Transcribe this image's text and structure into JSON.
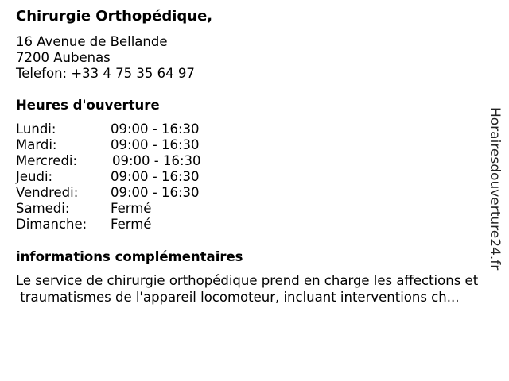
{
  "business": {
    "name": "Chirurgie Orthopédique,",
    "address_line1": "16 Avenue de Bellande",
    "address_line2": "7200 Aubenas",
    "phone": "Telefon: +33 4 75 35 64 97"
  },
  "hours": {
    "heading": "Heures d'ouverture",
    "days": [
      {
        "day": "Lundi:",
        "time": "09:00 - 16:30"
      },
      {
        "day": "Mardi:",
        "time": "09:00 - 16:30"
      },
      {
        "day": "Mercredi:",
        "time": "09:00 - 16:30"
      },
      {
        "day": "Jeudi:",
        "time": "09:00 - 16:30"
      },
      {
        "day": "Vendredi:",
        "time": "09:00 - 16:30"
      },
      {
        "day": "Samedi:",
        "time": "Fermé"
      },
      {
        "day": "Dimanche:",
        "time": "Fermé"
      }
    ]
  },
  "info": {
    "heading": "informations complémentaires",
    "line1": "Le service de chirurgie orthopédique prend en charge les affections et",
    "line2": " traumatismes de l'appareil locomoteur, incluant interventions ch..."
  },
  "watermark": "Horairesdouverture24.fr"
}
